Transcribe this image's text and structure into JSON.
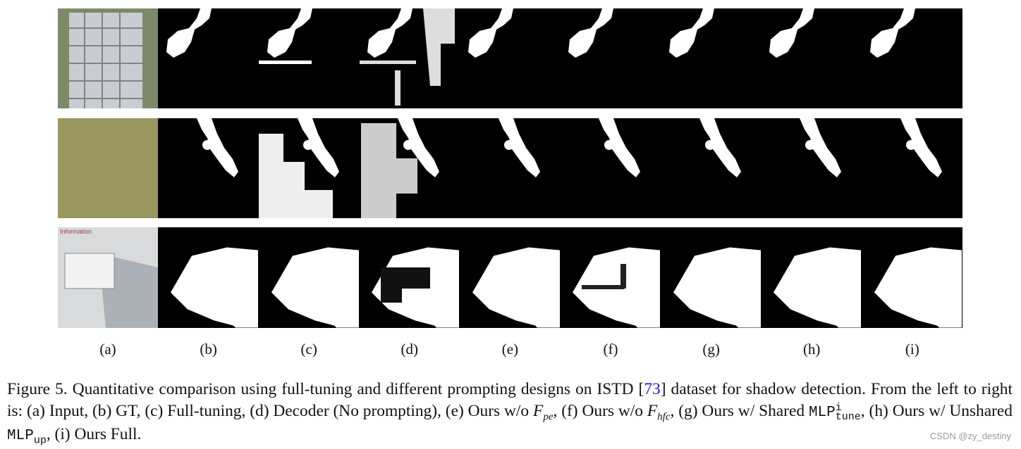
{
  "figure": {
    "information_sign": "Information",
    "column_labels": [
      "(a)",
      "(b)",
      "(c)",
      "(d)",
      "(e)",
      "(f)",
      "(g)",
      "(h)",
      "(i)"
    ],
    "caption": {
      "intro": "Figure 5. Quantitative comparison using full-tuning and different prompting designs on ISTD [",
      "reference": "73",
      "body": "] dataset for shadow detection. From the left to right is: (a) Input, (b) GT, (c) Full-tuning, (d) Decoder (No prompting), (e) Ours w/o ",
      "f_symbol_1": "F",
      "f_sub_1": "pe",
      "part_f": ", (f) Ours w/o ",
      "f_symbol_2": "F",
      "f_sub_2": "hfc",
      "part_g": ", (g) Ours w/ Shared ",
      "mlp_1": "MLP",
      "mlp_1_sup": "i",
      "mlp_1_sub": "tune",
      "part_h": ", (h) Ours w/ Unshared ",
      "mlp_2": "MLP",
      "mlp_2_sub": "up",
      "ending": ", (i) Ours Full."
    }
  },
  "watermark": "CSDN @zy_destiny"
}
